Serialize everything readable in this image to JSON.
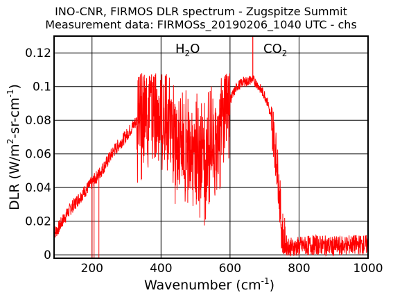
{
  "chart_data": {
    "type": "line",
    "title": "INO-CNR, FIRMOS DLR spectrum - Zugspitze Summit",
    "subtitle": "Measurement data: FIRMOSs_20190206_1040 UTC - chs",
    "xlabel": "Wavenumber (cm-1)",
    "ylabel": "DLR (W/m2-sr-cm-1)",
    "xlim": [
      90,
      1000
    ],
    "ylim": [
      -0.002,
      0.13
    ],
    "grid": true,
    "xticks": [
      200,
      400,
      600,
      800,
      1000
    ],
    "xtick_labels": [
      "200",
      "400",
      "600",
      "800",
      "1000"
    ],
    "yticks": [
      0,
      0.02,
      0.04,
      0.06,
      0.08,
      0.1,
      0.12
    ],
    "ytick_labels": [
      "0",
      "0.02",
      "0.04",
      "0.06",
      "0.08",
      "0.1",
      "0.12"
    ],
    "line_color": "#ff0000",
    "annotations": [
      {
        "text": "H2O",
        "x": 470,
        "y": 0.121
      },
      {
        "text": "CO2",
        "x": 698,
        "y": 0.121
      }
    ],
    "series": [
      {
        "x": [
          90,
          100,
          120,
          140,
          160,
          180,
          200,
          220,
          240,
          260,
          280,
          300,
          320,
          340,
          360,
          380,
          400,
          420,
          440,
          460,
          480,
          500,
          520,
          540,
          560,
          580,
          600,
          620,
          640,
          650,
          660,
          667,
          680,
          700,
          710,
          720,
          730,
          740,
          750,
          760,
          780,
          800,
          850,
          900,
          950,
          1000
        ],
        "y": [
          0.013,
          0.015,
          0.022,
          0.028,
          0.033,
          0.038,
          0.043,
          0.048,
          0.054,
          0.061,
          0.066,
          0.071,
          0.077,
          0.083,
          0.086,
          0.088,
          0.081,
          0.078,
          0.068,
          0.064,
          0.062,
          0.058,
          0.055,
          0.058,
          0.067,
          0.081,
          0.092,
          0.1,
          0.103,
          0.103,
          0.104,
          0.104,
          0.101,
          0.095,
          0.09,
          0.08,
          0.066,
          0.045,
          0.015,
          0.006,
          0.004,
          0.005,
          0.006,
          0.005,
          0.006,
          0.006
        ]
      }
    ]
  }
}
